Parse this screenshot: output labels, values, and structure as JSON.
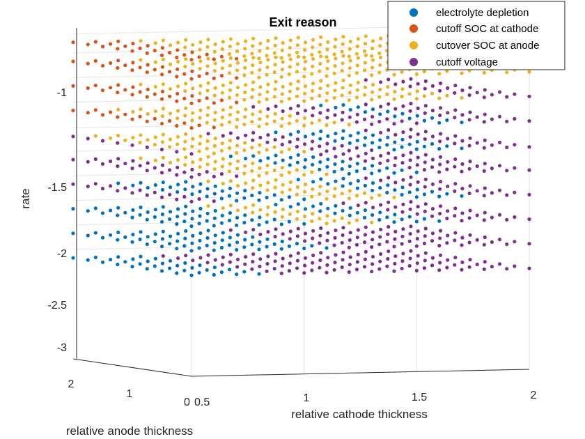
{
  "chart_data": {
    "type": "scatter",
    "title": "Exit reason",
    "xlabel": "relative cathode thickness",
    "ylabel": "relative anode thickness",
    "zlabel": "rate",
    "x_ticks": [
      "0.5",
      "1",
      "1.5",
      "2"
    ],
    "y_ticks": [
      "0",
      "1",
      "2"
    ],
    "z_ticks": [
      "-1",
      "-1.5",
      "-2",
      "-2.5",
      "-3"
    ],
    "x_range": [
      0.5,
      2
    ],
    "y_range": [
      0,
      2
    ],
    "z_range": [
      -3.1,
      -0.7
    ],
    "grid": true,
    "legend_position": "top-right",
    "rate_levels": [
      -0.78,
      -0.92,
      -1.1,
      -1.28,
      -1.47,
      -1.64,
      -1.82,
      -2.0,
      -2.18,
      -2.36
    ],
    "cathode_values": [
      0.5,
      0.6,
      0.7,
      0.8,
      0.9,
      1.0,
      1.1,
      1.2,
      1.3,
      1.4,
      1.5,
      1.6,
      1.7,
      1.8,
      1.9,
      2.0
    ],
    "anode_values": [
      0.0,
      0.25,
      0.5,
      0.75,
      1.0,
      1.25,
      1.5,
      1.75,
      2.0
    ],
    "series": [
      {
        "name": "electrolyte depletion",
        "color": "#0072BD"
      },
      {
        "name": "cutoff SOC at cathode",
        "color": "#D95319"
      },
      {
        "name": "cutover SOC at anode",
        "color": "#EDB120"
      },
      {
        "name": "cutoff voltage",
        "color": "#7E2F8E"
      }
    ],
    "classification": [
      {
        "rate": -0.78,
        "rules": [
          {
            "c_max": 0.75,
            "series": 1
          },
          {
            "c_max": 2.0,
            "series": 2
          }
        ]
      },
      {
        "rate": -0.92,
        "rules": [
          {
            "c_max": 0.75,
            "series": 1
          },
          {
            "c_max": 2.0,
            "series": 2
          }
        ]
      },
      {
        "rate": -1.1,
        "rules": [
          {
            "c_max": 0.7,
            "series": 1
          },
          {
            "c_max": 1.7,
            "series": 2
          },
          {
            "c_max": 2.0,
            "series": 3
          }
        ]
      },
      {
        "rate": -1.28,
        "rules": [
          {
            "c_max": 0.6,
            "series": 1
          },
          {
            "c_max": 1.2,
            "series": 2
          },
          {
            "c_max": 1.55,
            "series": 3
          },
          {
            "c_max": 1.75,
            "series": 0
          },
          {
            "c_max": 2.0,
            "series": 3
          }
        ]
      },
      {
        "rate": -1.47,
        "rules": [
          {
            "c_max": 0.55,
            "series": 3
          },
          {
            "c_max": 1.0,
            "series": 2
          },
          {
            "c_max": 1.3,
            "series": 3
          },
          {
            "c_max": 1.7,
            "series": 0
          },
          {
            "c_max": 2.0,
            "series": 3
          }
        ]
      },
      {
        "rate": -1.64,
        "rules": [
          {
            "c_max": 0.7,
            "series": 3
          },
          {
            "c_max": 1.1,
            "series": 2
          },
          {
            "c_max": 1.5,
            "series": 0
          },
          {
            "c_max": 2.0,
            "series": 3
          }
        ]
      },
      {
        "rate": -1.82,
        "rules": [
          {
            "c_max": 0.6,
            "series": 3
          },
          {
            "c_max": 1.0,
            "series": 0
          },
          {
            "c_max": 1.4,
            "series": 2
          },
          {
            "c_max": 1.7,
            "series": 0
          },
          {
            "c_max": 2.0,
            "series": 3
          }
        ]
      },
      {
        "rate": -2.0,
        "rules": [
          {
            "c_max": 1.0,
            "series": 0
          },
          {
            "c_max": 1.3,
            "series": 2
          },
          {
            "c_max": 1.65,
            "series": 0
          },
          {
            "c_max": 2.0,
            "series": 3
          }
        ]
      },
      {
        "rate": -2.18,
        "rules": [
          {
            "c_max": 1.1,
            "series": 0
          },
          {
            "c_max": 1.5,
            "series": 3
          },
          {
            "c_max": 2.0,
            "series": 3
          }
        ]
      },
      {
        "rate": -2.36,
        "rules": [
          {
            "c_max": 0.8,
            "series": 0
          },
          {
            "c_max": 2.0,
            "series": 3
          }
        ]
      }
    ]
  }
}
